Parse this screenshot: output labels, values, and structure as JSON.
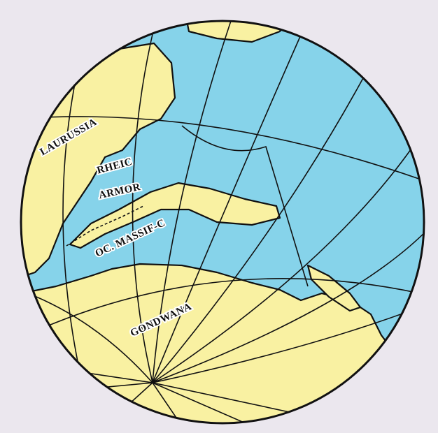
{
  "labels": [
    "LAURUSSIA",
    "RHEIC",
    "ARMOR",
    "OC. MASSIF-C",
    "GONDWANA"
  ]
}
